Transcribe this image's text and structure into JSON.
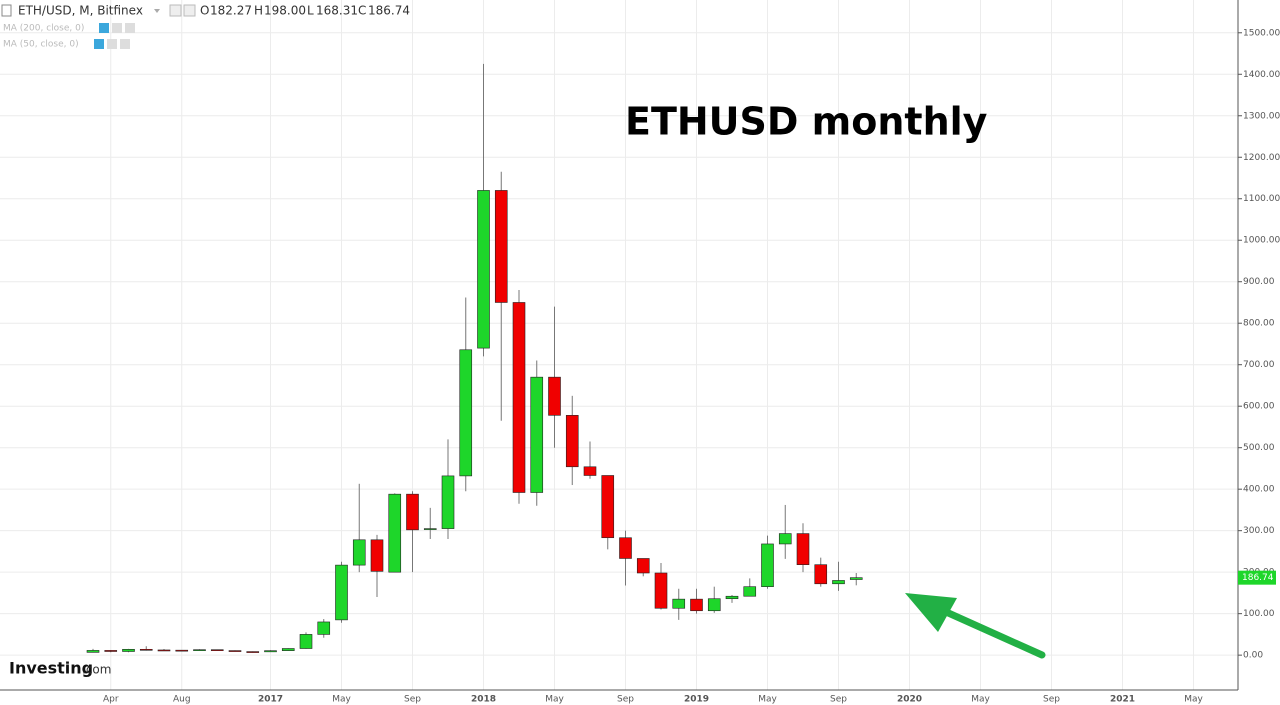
{
  "chart_data": {
    "type": "candlestick",
    "title": "ETHUSD monthly",
    "header": {
      "symbol": "ETH/USD, M, Bitfinex",
      "o": "O",
      "open": "182.27",
      "h": "H",
      "high": "198.00",
      "l": "L",
      "low": "168.31",
      "c": "C",
      "close": "186.74"
    },
    "indicators": [
      "MA (200, close, 0)",
      "MA (50, close, 0)"
    ],
    "logo": {
      "brand": "Investing",
      "suffix": ".com"
    },
    "categories": [
      null,
      "Apr",
      null,
      null,
      null,
      "Aug",
      null,
      null,
      null,
      null,
      "2017",
      null,
      null,
      null,
      "May",
      null,
      null,
      null,
      "Sep",
      null,
      null,
      null,
      "2018",
      null,
      null,
      null,
      "May",
      null,
      null,
      null,
      "Sep",
      null,
      null,
      null,
      "2019",
      null,
      null,
      null,
      "May",
      null,
      null,
      null,
      "Sep",
      null,
      null,
      null,
      "2020",
      null,
      null,
      null,
      "May",
      null,
      null,
      null,
      "Sep",
      null,
      null,
      null,
      "2021",
      null,
      null,
      null,
      "May",
      null
    ],
    "open": [
      6.7,
      11.4,
      8.8,
      14.1,
      12.5,
      12,
      11.4,
      13.2,
      11,
      8.6,
      8,
      10.8,
      16,
      50,
      85,
      217,
      278,
      200,
      388,
      305,
      305,
      432,
      740,
      1120,
      850,
      392,
      670,
      578,
      454,
      433,
      283,
      233,
      198,
      113,
      135,
      107,
      136,
      142,
      165,
      268,
      293,
      218,
      172,
      182.27,
      null,
      null,
      null,
      null,
      null,
      null,
      null,
      null,
      null,
      null,
      null,
      null,
      null,
      null,
      null,
      null,
      null,
      null,
      null,
      null
    ],
    "high": [
      15,
      12,
      15,
      21.5,
      14.8,
      12.4,
      14.2,
      13.3,
      11.5,
      9,
      11.8,
      16.5,
      55,
      87,
      225,
      413,
      290,
      390,
      395,
      355,
      520,
      862,
      1425,
      1165,
      880,
      710,
      840,
      625,
      515,
      433,
      300,
      230,
      222,
      160,
      160,
      165,
      145,
      185,
      288,
      362,
      318,
      235,
      225,
      198,
      null,
      null,
      null,
      null,
      null,
      null,
      null,
      null,
      null,
      null,
      null,
      null,
      null,
      null,
      null,
      null,
      null,
      null,
      null,
      null
    ],
    "low": [
      6.6,
      7,
      7,
      11,
      10.5,
      10.5,
      11,
      10.6,
      8.8,
      6.1,
      7.9,
      10,
      15.5,
      42,
      78,
      200,
      140,
      200,
      200,
      280,
      280,
      395,
      720,
      565,
      365,
      360,
      500,
      410,
      425,
      255,
      168,
      190,
      110,
      85,
      100,
      102,
      126,
      145,
      160,
      232,
      200,
      165,
      155,
      168.31,
      null,
      null,
      null,
      null,
      null,
      null,
      null,
      null,
      null,
      null,
      null,
      null,
      null,
      null,
      null,
      null,
      null,
      null,
      null,
      null
    ],
    "close": [
      11.4,
      8.8,
      14.1,
      12.5,
      12.1,
      11.4,
      13.2,
      11,
      8.6,
      8,
      10.8,
      16,
      50,
      80,
      217,
      278,
      202,
      388,
      302,
      305,
      432,
      736,
      1120,
      850,
      392,
      670,
      578,
      454,
      433,
      283,
      233,
      198,
      113,
      135,
      107,
      136,
      142,
      165,
      268,
      293,
      218,
      172,
      180,
      186.74,
      null,
      null,
      null,
      null,
      null,
      null,
      null,
      null,
      null,
      null,
      null,
      null,
      null,
      null,
      null,
      null,
      null,
      null,
      null,
      null
    ],
    "up_color": "#1ed62a",
    "down_color": "#f00000",
    "ylim": [
      -84,
      1579
    ],
    "yticks": [
      {
        "value": 0,
        "label": "0.00"
      },
      {
        "value": 100,
        "label": "100.00"
      },
      {
        "value": 200,
        "label": "200.00"
      },
      {
        "value": 300,
        "label": "300.00"
      },
      {
        "value": 400,
        "label": "400.00"
      },
      {
        "value": 500,
        "label": "500.00"
      },
      {
        "value": 600,
        "label": "600.00"
      },
      {
        "value": 700,
        "label": "700.00"
      },
      {
        "value": 800,
        "label": "800.00"
      },
      {
        "value": 900,
        "label": "900.00"
      },
      {
        "value": 1000,
        "label": "1000.00"
      },
      {
        "value": 1100,
        "label": "1100.00"
      },
      {
        "value": 1200,
        "label": "1200.00"
      },
      {
        "value": 1300,
        "label": "1300.00"
      },
      {
        "value": 1400,
        "label": "1400.00"
      },
      {
        "value": 1500,
        "label": "1500.00"
      }
    ],
    "grid": true
  }
}
